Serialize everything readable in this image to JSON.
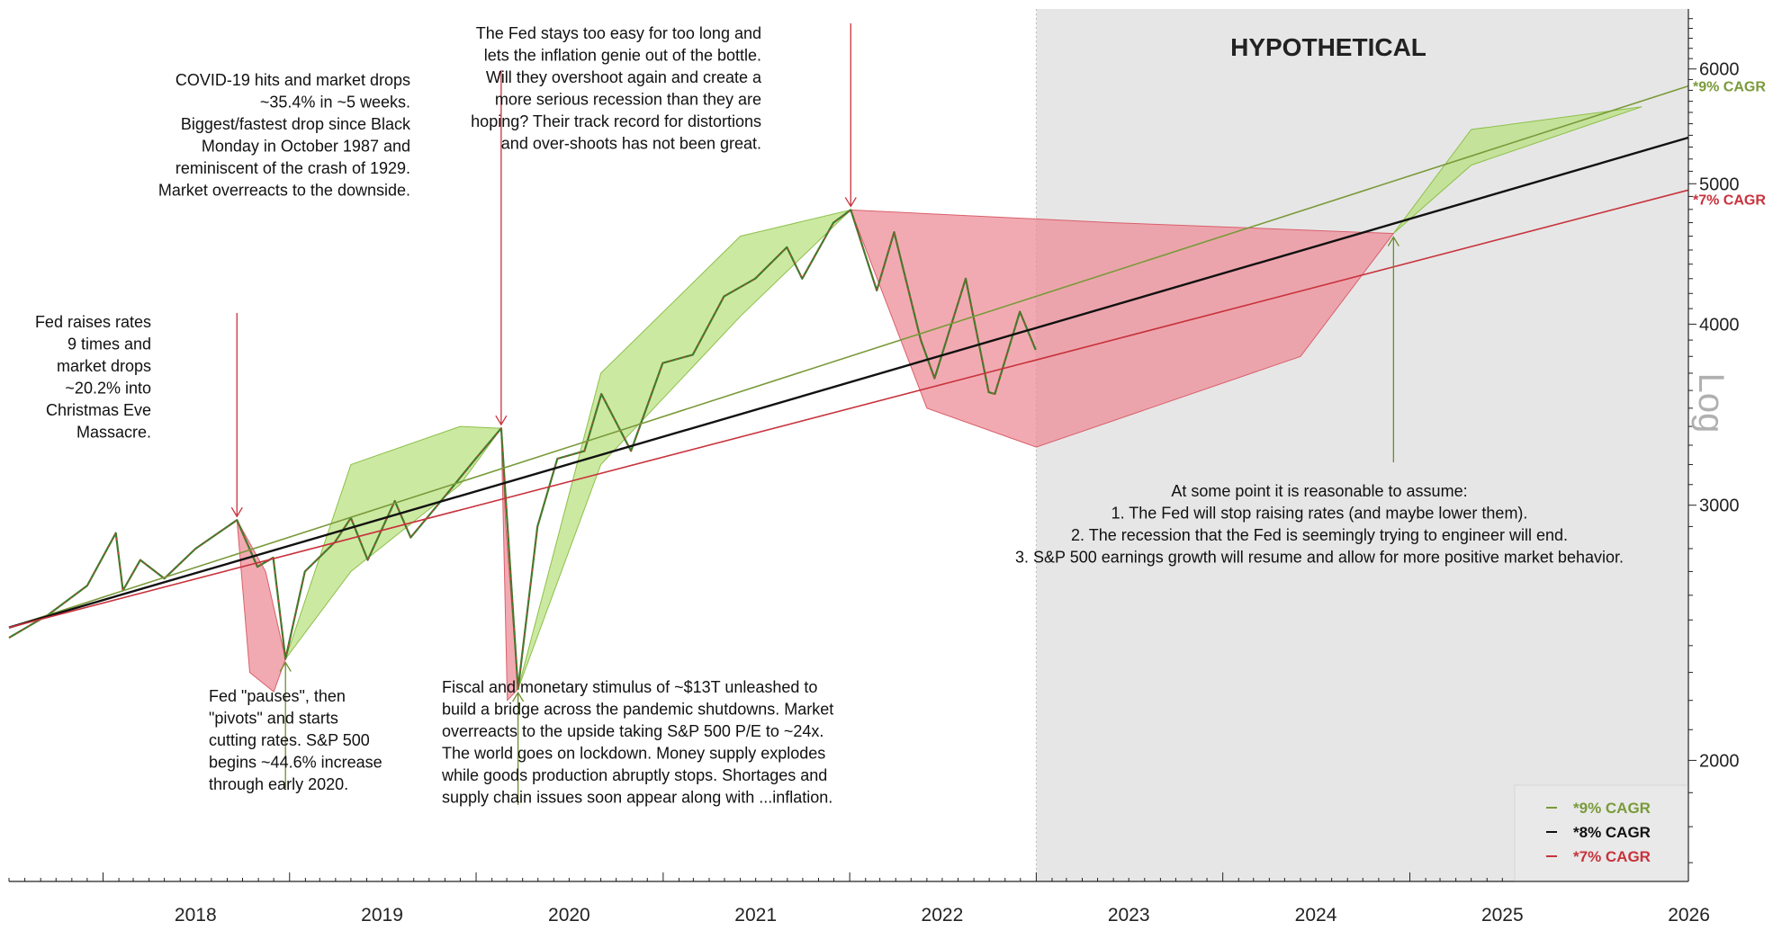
{
  "chart_data": {
    "type": "line",
    "title": "",
    "xlabel": "",
    "ylabel": "Log",
    "y_scale": "log",
    "ylim": [
      1650,
      6600
    ],
    "xlim": [
      "2017-07-01",
      "2026-06-30"
    ],
    "x_ticks": [
      "2018",
      "2019",
      "2020",
      "2021",
      "2022",
      "2023",
      "2024",
      "2025",
      "2026"
    ],
    "y_ticks": [
      2000,
      3000,
      4000,
      5000,
      6000
    ],
    "shaded_region": {
      "label": "HYPOTHETICAL",
      "from": "2023-01-01",
      "to": "2026-06-30"
    },
    "legend": {
      "position": "bottom-right",
      "entries": [
        "*9% CAGR",
        "*8% CAGR",
        "*7% CAGR"
      ]
    },
    "colors": {
      "green": "#7a9a3a",
      "black": "#111111",
      "red": "#c8323c",
      "green_fill": "#b6e07a",
      "red_fill": "#ee8d98",
      "shade": "#e6e6e6"
    },
    "series": [
      {
        "name": "*9% CAGR",
        "x": [
          "2017-07-01",
          "2026-06-30"
        ],
        "values": [
          2470,
          5840
        ]
      },
      {
        "name": "*8% CAGR",
        "x": [
          "2017-07-01",
          "2026-06-30"
        ],
        "values": [
          2470,
          5380
        ]
      },
      {
        "name": "*7% CAGR",
        "x": [
          "2017-07-01",
          "2026-06-30"
        ],
        "values": [
          2470,
          4950
        ]
      }
    ],
    "price_path": {
      "x": [
        "2017-07-01",
        "2017-09-15",
        "2017-12-01",
        "2018-01-26",
        "2018-02-09",
        "2018-03-15",
        "2018-05-01",
        "2018-07-01",
        "2018-09-20",
        "2018-10-30",
        "2018-11-30",
        "2018-12-24",
        "2019-01-31",
        "2019-03-31",
        "2019-05-01",
        "2019-06-03",
        "2019-07-26",
        "2019-08-26",
        "2019-10-31",
        "2019-12-31",
        "2020-02-19",
        "2020-03-23",
        "2020-04-30",
        "2020-06-08",
        "2020-07-31",
        "2020-09-02",
        "2020-10-30",
        "2020-12-31",
        "2021-02-28",
        "2021-04-30",
        "2021-06-30",
        "2021-08-31",
        "2021-09-30",
        "2021-11-30",
        "2022-01-03",
        "2022-02-23",
        "2022-03-29",
        "2022-05-20",
        "2022-06-16",
        "2022-08-16",
        "2022-09-30",
        "2022-10-12",
        "2022-11-30",
        "2022-12-31"
      ],
      "values": [
        2430,
        2520,
        2640,
        2870,
        2620,
        2750,
        2670,
        2800,
        2930,
        2720,
        2760,
        2350,
        2700,
        2830,
        2940,
        2750,
        3020,
        2850,
        3040,
        3230,
        3390,
        2240,
        2900,
        3230,
        3270,
        3580,
        3270,
        3760,
        3810,
        4180,
        4300,
        4520,
        4300,
        4700,
        4796,
        4220,
        4630,
        3900,
        3670,
        4300,
        3590,
        3580,
        4080,
        3840
      ]
    },
    "bands": {
      "green": [
        {
          "x": [
            "2018-12-24",
            "2019-05-01",
            "2019-12-01",
            "2020-02-19",
            "2019-12-01",
            "2019-05-01",
            "2018-12-24"
          ],
          "values": [
            2350,
            3200,
            3400,
            3390,
            3100,
            2700,
            2350
          ]
        },
        {
          "x": [
            "2020-03-23",
            "2020-09-01",
            "2021-06-01",
            "2022-01-03",
            "2021-06-01",
            "2020-09-01",
            "2020-03-23"
          ],
          "values": [
            2240,
            3700,
            4600,
            4796,
            4050,
            3200,
            2240
          ]
        },
        {
          "x": [
            "2024-11-30",
            "2025-05-01",
            "2026-03-31",
            "2025-05-01",
            "2024-11-30"
          ],
          "values": [
            4620,
            5450,
            5650,
            5150,
            4620
          ]
        }
      ],
      "red": [
        {
          "x": [
            "2018-09-20",
            "2018-10-15",
            "2018-12-01",
            "2018-12-24",
            "2018-11-15",
            "2018-09-20"
          ],
          "values": [
            2930,
            2300,
            2230,
            2350,
            2700,
            2930
          ]
        },
        {
          "x": [
            "2020-02-19",
            "2020-03-02",
            "2020-03-23",
            "2020-02-28",
            "2020-02-19"
          ],
          "values": [
            3390,
            2200,
            2240,
            2900,
            3390
          ]
        },
        {
          "x": [
            "2022-01-03",
            "2022-06-01",
            "2023-01-01",
            "2024-06-01",
            "2024-11-30",
            "2023-06-01",
            "2022-01-03"
          ],
          "values": [
            4796,
            3500,
            3290,
            3800,
            4620,
            4700,
            4796
          ]
        }
      ]
    },
    "annotations": [
      {
        "text": [
          "Fed raises rates",
          "9 times and",
          "market drops",
          "~20.2% into",
          "Christmas Eve",
          "Massacre."
        ],
        "anchor": "end"
      },
      {
        "text": [
          "COVID-19 hits and market drops",
          "~35.4% in ~5 weeks.",
          "Biggest/fastest drop since Black",
          "Monday in October 1987 and",
          "reminiscent of the crash of 1929.",
          "Market overreacts to the downside."
        ],
        "anchor": "end"
      },
      {
        "text": [
          "The Fed stays too easy for too long and",
          "lets the inflation genie out of the bottle.",
          "Will they overshoot again and create a",
          "more serious recession than they are",
          "hoping? Their track record for distortions",
          "and over-shoots has not been great."
        ],
        "anchor": "end"
      },
      {
        "text": [
          "Fed \"pauses\", then",
          "\"pivots\" and starts",
          "cutting rates. S&P 500",
          "begins ~44.6% increase",
          "through early 2020."
        ],
        "anchor": "start"
      },
      {
        "text": [
          "Fiscal and monetary stimulus of ~$13T unleashed to",
          "build a bridge across the pandemic shutdowns. Market",
          "overreacts to the upside taking S&P 500 P/E to ~24x.",
          "The world goes on lockdown. Money supply explodes",
          "while goods production abruptly stops. Shortages and",
          "supply chain issues soon appear along with ...inflation."
        ],
        "anchor": "start"
      },
      {
        "text": [
          "At some point it is reasonable to assume:",
          "",
          "1. The Fed will stop raising rates (and maybe lower them).",
          "2. The recession that the Fed is seemingly trying to engineer will end.",
          "3. S&P 500 earnings growth will resume and allow for more positive market behavior."
        ],
        "anchor": "middle"
      }
    ],
    "line_labels": {
      "green": "*9% CAGR",
      "red": "*7% CAGR"
    }
  }
}
